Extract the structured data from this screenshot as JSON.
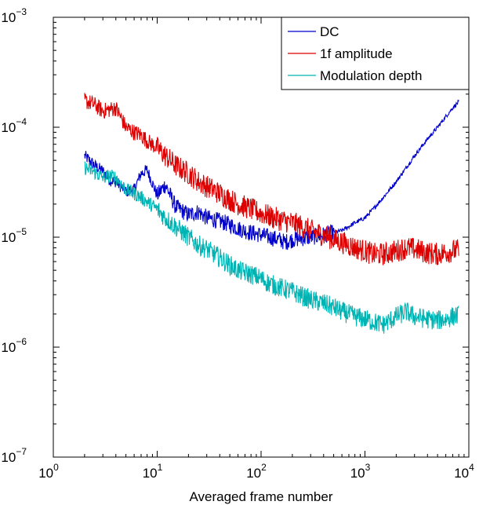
{
  "chart_data": {
    "type": "line",
    "title": "",
    "xlabel": "Averaged frame number",
    "ylabel": "",
    "xscale": "log",
    "yscale": "log",
    "xlim": [
      1,
      10000
    ],
    "ylim": [
      1e-07,
      0.001
    ],
    "grid": false,
    "legend_position": "top-right",
    "x_ticks": [
      {
        "value": 1,
        "base": "10",
        "exp": "0"
      },
      {
        "value": 10,
        "base": "10",
        "exp": "1"
      },
      {
        "value": 100,
        "base": "10",
        "exp": "2"
      },
      {
        "value": 1000,
        "base": "10",
        "exp": "3"
      },
      {
        "value": 10000,
        "base": "10",
        "exp": "4"
      }
    ],
    "y_ticks": [
      {
        "value": 1e-07,
        "base": "10",
        "exp": "−7"
      },
      {
        "value": 1e-06,
        "base": "10",
        "exp": "−6"
      },
      {
        "value": 1e-05,
        "base": "10",
        "exp": "−5"
      },
      {
        "value": 0.0001,
        "base": "10",
        "exp": "−4"
      },
      {
        "value": 0.001,
        "base": "10",
        "exp": "−3"
      }
    ],
    "series": [
      {
        "name": "DC",
        "color": "#0000cc",
        "x": [
          2,
          2.5,
          3,
          3.5,
          4,
          5,
          6,
          7,
          8,
          10,
          12,
          15,
          20,
          25,
          30,
          40,
          50,
          60,
          80,
          100,
          120,
          150,
          170,
          200,
          250,
          300,
          400,
          500,
          600,
          700,
          800,
          1000,
          1200,
          1500,
          2000,
          2500,
          3000,
          4000,
          5000,
          6000,
          7000,
          8000
        ],
        "values": [
          5.5e-05,
          4.5e-05,
          4e-05,
          3.3e-05,
          3.2e-05,
          2.6e-05,
          2.7e-05,
          3.8e-05,
          4.1e-05,
          2.4e-05,
          3e-05,
          1.9e-05,
          1.6e-05,
          1.7e-05,
          1.5e-05,
          1.4e-05,
          1.3e-05,
          1.2e-05,
          1.1e-05,
          1.05e-05,
          1e-05,
          9.5e-06,
          9e-06,
          9.5e-06,
          9.8e-06,
          1e-05,
          1.05e-05,
          1.1e-05,
          1.15e-05,
          1.25e-05,
          1.35e-05,
          1.5e-05,
          1.8e-05,
          2.3e-05,
          3.2e-05,
          4.3e-05,
          5.5e-05,
          7.8e-05,
          0.0001,
          0.000125,
          0.00015,
          0.00017
        ]
      },
      {
        "name": "1f amplitude",
        "color": "#dd0000",
        "x": [
          2,
          2.5,
          3,
          3.5,
          4,
          5,
          6,
          7,
          8,
          10,
          12,
          15,
          20,
          25,
          30,
          40,
          50,
          60,
          80,
          100,
          120,
          150,
          200,
          250,
          300,
          400,
          500,
          600,
          700,
          800,
          1000,
          1200,
          1500,
          2000,
          2500,
          3000,
          4000,
          5000,
          6000,
          7000,
          8000
        ],
        "values": [
          0.000175,
          0.00016,
          0.00014,
          0.000145,
          0.00015,
          0.0001,
          9e-05,
          8.5e-05,
          7.5e-05,
          6.5e-05,
          5.5e-05,
          4.5e-05,
          3.8e-05,
          3.2e-05,
          2.9e-05,
          2.5e-05,
          2.2e-05,
          2e-05,
          1.8e-05,
          1.65e-05,
          1.55e-05,
          1.45e-05,
          1.35e-05,
          1.25e-05,
          1.15e-05,
          1.05e-05,
          9.5e-06,
          9e-06,
          8.5e-06,
          8e-06,
          7.5e-06,
          7e-06,
          7e-06,
          7.5e-06,
          8e-06,
          7.8e-06,
          7.2e-06,
          7e-06,
          7.3e-06,
          7.5e-06,
          7.6e-06
        ]
      },
      {
        "name": "Modulation depth",
        "color": "#00b3b3",
        "x": [
          2,
          2.5,
          3,
          3.5,
          4,
          5,
          6,
          7,
          8,
          10,
          12,
          15,
          20,
          25,
          30,
          40,
          50,
          60,
          80,
          100,
          120,
          150,
          200,
          250,
          300,
          400,
          500,
          600,
          700,
          800,
          1000,
          1200,
          1500,
          2000,
          2500,
          3000,
          4000,
          5000,
          6000,
          7000,
          8000
        ],
        "values": [
          4.3e-05,
          3.9e-05,
          3.5e-05,
          3.6e-05,
          3.5e-05,
          2.7e-05,
          2.5e-05,
          2.3e-05,
          2.1e-05,
          1.8e-05,
          1.5e-05,
          1.25e-05,
          1e-05,
          8.5e-06,
          7.8e-06,
          6.5e-06,
          5.6e-06,
          5e-06,
          4.6e-06,
          4.2e-06,
          3.8e-06,
          3.5e-06,
          3.2e-06,
          2.9e-06,
          2.7e-06,
          2.5e-06,
          2.3e-06,
          2.1e-06,
          2e-06,
          1.9e-06,
          1.8e-06,
          1.7e-06,
          1.6e-06,
          1.9e-06,
          2.1e-06,
          1.9e-06,
          1.8e-06,
          1.75e-06,
          1.8e-06,
          1.9e-06,
          1.95e-06
        ]
      }
    ]
  }
}
